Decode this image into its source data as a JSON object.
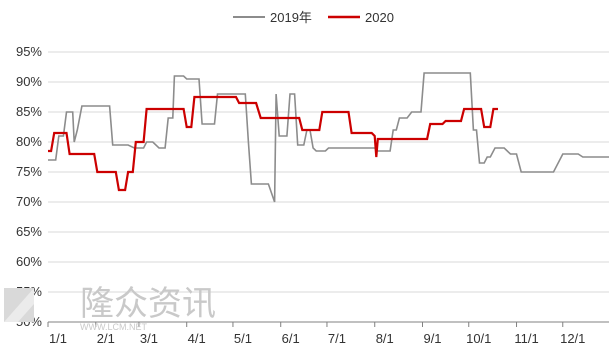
{
  "chart_data": {
    "type": "line",
    "ylim": [
      50,
      95
    ],
    "y_ticks": [
      50,
      55,
      60,
      65,
      70,
      75,
      80,
      85,
      90,
      95
    ],
    "y_tick_labels": [
      "50%",
      "55%",
      "60%",
      "65%",
      "70%",
      "75%",
      "80%",
      "85%",
      "90%",
      "95%"
    ],
    "x_ticks": [
      0,
      31,
      59,
      90,
      120,
      151,
      181,
      212,
      243,
      273,
      304,
      334
    ],
    "x_tick_labels": [
      "1/1",
      "2/1",
      "3/1",
      "4/1",
      "5/1",
      "6/1",
      "7/1",
      "8/1",
      "9/1",
      "10/1",
      "11/1",
      "12/1"
    ],
    "xlim": [
      0,
      364
    ],
    "grid": "horizontal",
    "legend_position": "top-center",
    "series": [
      {
        "name": "2019年",
        "color": "#8c8c8c",
        "points": [
          [
            0,
            77
          ],
          [
            5,
            77
          ],
          [
            7,
            81
          ],
          [
            10,
            81
          ],
          [
            12,
            85
          ],
          [
            16,
            85
          ],
          [
            17,
            80
          ],
          [
            19,
            82
          ],
          [
            22,
            86
          ],
          [
            40,
            86
          ],
          [
            42,
            79.5
          ],
          [
            52,
            79.5
          ],
          [
            56,
            79
          ],
          [
            62,
            79
          ],
          [
            64,
            80
          ],
          [
            68,
            80
          ],
          [
            72,
            79
          ],
          [
            76,
            79
          ],
          [
            78,
            84
          ],
          [
            81,
            84
          ],
          [
            82,
            91
          ],
          [
            88,
            91
          ],
          [
            90,
            90.5
          ],
          [
            98,
            90.5
          ],
          [
            100,
            83
          ],
          [
            108,
            83
          ],
          [
            110,
            88
          ],
          [
            122,
            88
          ],
          [
            128,
            88
          ],
          [
            130,
            80
          ],
          [
            132,
            73
          ],
          [
            143,
            73
          ],
          [
            147,
            70
          ],
          [
            148,
            88
          ],
          [
            150,
            81
          ],
          [
            155,
            81
          ],
          [
            157,
            88
          ],
          [
            160,
            88
          ],
          [
            162,
            79.5
          ],
          [
            166,
            79.5
          ],
          [
            168,
            82
          ],
          [
            170,
            82
          ],
          [
            172,
            79
          ],
          [
            174,
            78.5
          ],
          [
            180,
            78.5
          ],
          [
            182,
            79
          ],
          [
            188,
            79
          ],
          [
            194,
            79
          ],
          [
            202,
            79
          ],
          [
            212,
            79
          ],
          [
            214,
            78.5
          ],
          [
            222,
            78.5
          ],
          [
            224,
            82
          ],
          [
            226,
            82
          ],
          [
            228,
            84
          ],
          [
            233,
            84
          ],
          [
            236,
            85
          ],
          [
            242,
            85
          ],
          [
            244,
            91.5
          ],
          [
            258,
            91.5
          ],
          [
            264,
            91.5
          ],
          [
            274,
            91.5
          ],
          [
            276,
            82
          ],
          [
            278,
            82
          ],
          [
            280,
            76.5
          ],
          [
            283,
            76.5
          ],
          [
            285,
            77.5
          ],
          [
            287,
            77.5
          ],
          [
            290,
            79
          ],
          [
            296,
            79
          ],
          [
            300,
            78
          ],
          [
            304,
            78
          ],
          [
            307,
            75
          ],
          [
            328,
            75
          ],
          [
            334,
            78
          ],
          [
            344,
            78
          ],
          [
            347,
            77.5
          ],
          [
            364,
            77.5
          ]
        ]
      },
      {
        "name": "2020",
        "color": "#cc0000",
        "points": [
          [
            0,
            78.5
          ],
          [
            2,
            78.5
          ],
          [
            4,
            81.5
          ],
          [
            12,
            81.5
          ],
          [
            14,
            78
          ],
          [
            30,
            78
          ],
          [
            32,
            75
          ],
          [
            44,
            75
          ],
          [
            46,
            72
          ],
          [
            50,
            72
          ],
          [
            52,
            75
          ],
          [
            55,
            75
          ],
          [
            57,
            80
          ],
          [
            62,
            80
          ],
          [
            64,
            85.5
          ],
          [
            88,
            85.5
          ],
          [
            90,
            82.5
          ],
          [
            93,
            82.5
          ],
          [
            95,
            87.5
          ],
          [
            112,
            87.5
          ],
          [
            116,
            87.5
          ],
          [
            122,
            87.5
          ],
          [
            124,
            86.5
          ],
          [
            135,
            86.5
          ],
          [
            138,
            84
          ],
          [
            151,
            84
          ],
          [
            163,
            84
          ],
          [
            165,
            82
          ],
          [
            176,
            82
          ],
          [
            178,
            85
          ],
          [
            195,
            85
          ],
          [
            197,
            81.5
          ],
          [
            210,
            81.5
          ],
          [
            212,
            81
          ],
          [
            213,
            77.5
          ],
          [
            214,
            80.5
          ],
          [
            218,
            80.5
          ],
          [
            230,
            80.5
          ],
          [
            246,
            80.5
          ],
          [
            248,
            83
          ],
          [
            256,
            83
          ],
          [
            258,
            83.5
          ],
          [
            268,
            83.5
          ],
          [
            270,
            85.5
          ],
          [
            281,
            85.5
          ],
          [
            283,
            82.5
          ],
          [
            287,
            82.5
          ],
          [
            289,
            85.5
          ],
          [
            292,
            85.5
          ]
        ]
      }
    ]
  },
  "watermark": {
    "text": "隆众资讯",
    "url": "WWW.LCM.NET"
  }
}
